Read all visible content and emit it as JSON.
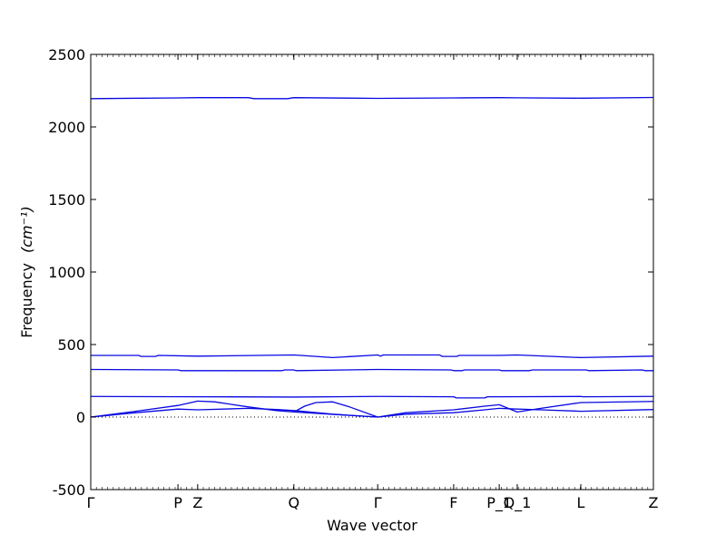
{
  "chart_data": {
    "type": "line",
    "title": "",
    "xlabel": "Wave vector",
    "ylabel": "Frequency",
    "ylabel_unit": "(cm⁻¹)",
    "ylim": [
      -500,
      2500
    ],
    "y_ticks": [
      -500,
      0,
      500,
      1000,
      1500,
      2000,
      2500
    ],
    "x_ticks": [
      {
        "label": "Γ",
        "pos": 0.0
      },
      {
        "label": "P",
        "pos": 0.155
      },
      {
        "label": "Z",
        "pos": 0.19
      },
      {
        "label": "Q",
        "pos": 0.361
      },
      {
        "label": "Γ",
        "pos": 0.51
      },
      {
        "label": "F",
        "pos": 0.645
      },
      {
        "label": "P_1",
        "pos": 0.726
      },
      {
        "label": "Q_1",
        "pos": 0.758
      },
      {
        "label": "L",
        "pos": 0.871
      },
      {
        "label": "Z",
        "pos": 1.0
      }
    ],
    "line_color": "#0000ff",
    "zero_line": true,
    "series": [
      {
        "x": [
          0,
          0.155,
          0.19,
          0.28,
          0.29,
          0.35,
          0.361,
          0.51,
          0.645,
          0.726,
          0.758,
          0.871,
          1.0
        ],
        "values": [
          2195,
          2200,
          2202,
          2202,
          2195,
          2195,
          2202,
          2197,
          2200,
          2202,
          2201,
          2198,
          2203
        ]
      },
      {
        "x": [
          0,
          0.085,
          0.09,
          0.115,
          0.12,
          0.19,
          0.361,
          0.43,
          0.51,
          0.515,
          0.52,
          0.62,
          0.625,
          0.65,
          0.655,
          0.726,
          0.758,
          0.871,
          1.0
        ],
        "values": [
          425,
          425,
          418,
          418,
          425,
          420,
          428,
          410,
          428,
          420,
          428,
          428,
          418,
          418,
          425,
          425,
          428,
          410,
          420
        ]
      },
      {
        "x": [
          0,
          0.155,
          0.16,
          0.34,
          0.345,
          0.36,
          0.365,
          0.51,
          0.64,
          0.645,
          0.66,
          0.665,
          0.726,
          0.73,
          0.78,
          0.785,
          0.88,
          0.885,
          0.98,
          0.985,
          1.0
        ],
        "values": [
          328,
          325,
          320,
          320,
          325,
          325,
          320,
          328,
          325,
          320,
          320,
          325,
          325,
          320,
          320,
          325,
          325,
          320,
          325,
          320,
          320
        ]
      },
      {
        "x": [
          0,
          0.19,
          0.361,
          0.51,
          0.645,
          0.65,
          0.7,
          0.705,
          0.726,
          0.871,
          0.875,
          1.0
        ],
        "values": [
          142,
          140,
          138,
          142,
          140,
          132,
          132,
          140,
          140,
          142,
          140,
          142
        ]
      },
      {
        "x": [
          0,
          0.08,
          0.155,
          0.19,
          0.22,
          0.28,
          0.33,
          0.361,
          0.51
        ],
        "values": [
          0,
          40,
          80,
          110,
          105,
          70,
          45,
          35,
          0
        ]
      },
      {
        "x": [
          0,
          0.08,
          0.155,
          0.19,
          0.28,
          0.33,
          0.361,
          0.43,
          0.51
        ],
        "values": [
          0,
          30,
          55,
          50,
          60,
          52,
          45,
          20,
          0
        ]
      },
      {
        "x": [
          0.361,
          0.38,
          0.4,
          0.43,
          0.46,
          0.51
        ],
        "values": [
          35,
          75,
          100,
          105,
          70,
          0
        ]
      },
      {
        "x": [
          0.51,
          0.56,
          0.645,
          0.7,
          0.726,
          0.758,
          0.8,
          0.871,
          1.0
        ],
        "values": [
          0,
          30,
          50,
          75,
          85,
          35,
          60,
          100,
          108
        ]
      },
      {
        "x": [
          0.51,
          0.56,
          0.645,
          0.7,
          0.726,
          0.758,
          0.8,
          0.871,
          1.0
        ],
        "values": [
          0,
          20,
          30,
          50,
          60,
          55,
          50,
          40,
          52
        ]
      }
    ]
  }
}
